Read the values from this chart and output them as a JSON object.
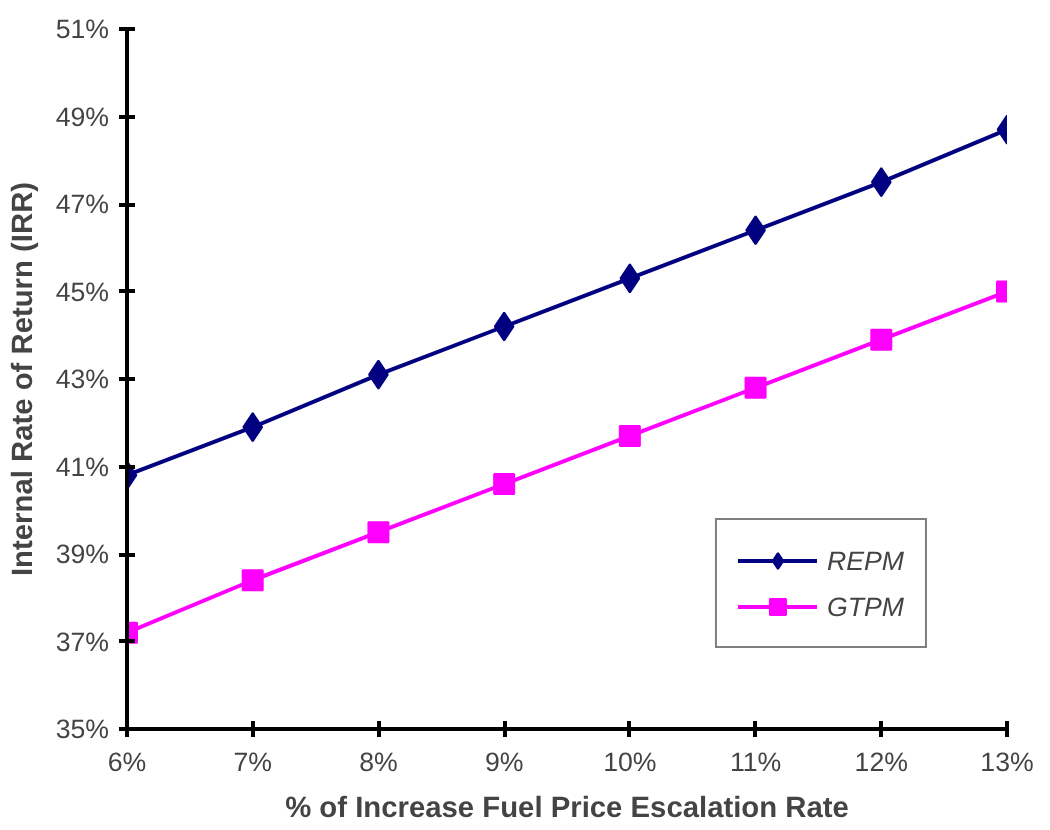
{
  "chart_data": {
    "type": "line",
    "xlabel": "% of Increase Fuel Price Escalation Rate",
    "ylabel": "Internal Rate of Return (IRR)",
    "x": [
      6,
      7,
      8,
      9,
      10,
      11,
      12,
      13
    ],
    "series": [
      {
        "name": "REPM",
        "color": "#000080",
        "marker": "diamond",
        "values": [
          40.8,
          41.9,
          43.1,
          44.2,
          45.3,
          46.4,
          47.5,
          48.7
        ]
      },
      {
        "name": "GTPM",
        "color": "#ff00ff",
        "marker": "square",
        "values": [
          37.2,
          38.4,
          39.5,
          40.6,
          41.7,
          42.8,
          43.9,
          45.0
        ]
      }
    ],
    "xlim": [
      6,
      13
    ],
    "ylim": [
      35,
      51
    ],
    "xticks": [
      {
        "value": 6,
        "label": "6%"
      },
      {
        "value": 7,
        "label": "7%"
      },
      {
        "value": 8,
        "label": "8%"
      },
      {
        "value": 9,
        "label": "9%"
      },
      {
        "value": 10,
        "label": "10%"
      },
      {
        "value": 11,
        "label": "11%"
      },
      {
        "value": 12,
        "label": "12%"
      },
      {
        "value": 13,
        "label": "13%"
      }
    ],
    "yticks": [
      {
        "value": 35,
        "label": "35%"
      },
      {
        "value": 37,
        "label": "37%"
      },
      {
        "value": 39,
        "label": "39%"
      },
      {
        "value": 41,
        "label": "41%"
      },
      {
        "value": 43,
        "label": "43%"
      },
      {
        "value": 45,
        "label": "45%"
      },
      {
        "value": 47,
        "label": "47%"
      },
      {
        "value": 49,
        "label": "49%"
      },
      {
        "value": 51,
        "label": "51%"
      }
    ],
    "grid": false,
    "legend": "bottom right",
    "line_style": "solid"
  }
}
